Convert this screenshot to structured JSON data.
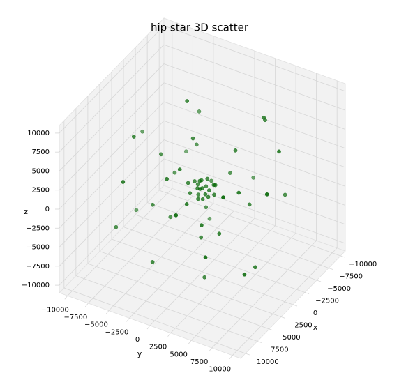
{
  "chart_data": {
    "type": "scatter3d",
    "title": "hip star 3D scatter",
    "xlabel": "x",
    "ylabel": "y",
    "zlabel": "z",
    "color": "#006400",
    "xlim": [
      -11000,
      11000
    ],
    "ylim": [
      -11000,
      11000
    ],
    "zlim": [
      -11000,
      11000
    ],
    "xticks": [
      {
        "value": -10000,
        "label": "−10000"
      },
      {
        "value": -7500,
        "label": "−7500"
      },
      {
        "value": -5000,
        "label": "−5000"
      },
      {
        "value": -2500,
        "label": "−2500"
      },
      0,
      2500,
      5000,
      7500,
      10000
    ],
    "yticks": [
      {
        "value": -10000,
        "label": "−10000"
      },
      {
        "value": -7500,
        "label": "−7500"
      },
      {
        "value": -5000,
        "label": "−5000"
      },
      {
        "value": -2500,
        "label": "−2500"
      },
      0,
      2500,
      5000,
      7500,
      10000
    ],
    "zticks": [
      {
        "value": -10000,
        "label": "−10000"
      },
      {
        "value": -7500,
        "label": "−7500"
      },
      {
        "value": -5000,
        "label": "−5000"
      },
      {
        "value": -2500,
        "label": "−2500"
      },
      0,
      2500,
      5000,
      7500,
      10000
    ],
    "x": [
      0,
      500,
      -400,
      800,
      -700,
      300,
      -900,
      1200,
      -300,
      600,
      -1000,
      200,
      1400,
      -500,
      900,
      -1300,
      100,
      -200,
      1100,
      -800,
      4000,
      -3000,
      2500,
      -4000,
      3500,
      -2000,
      5000,
      -5000,
      1000,
      -1500,
      2000,
      -3500,
      3000,
      -2500,
      4500,
      0,
      -4500,
      1500,
      8000,
      -7000,
      5000,
      -8000,
      6000,
      -3000,
      9000,
      -9000,
      2000,
      -2000,
      3000,
      -6000,
      7000,
      -5000,
      8000,
      0,
      -7000,
      4000,
      -4000,
      6000,
      -8000,
      1000
    ],
    "y": [
      0,
      -300,
      600,
      200,
      -500,
      900,
      100,
      -800,
      -1100,
      400,
      800,
      -200,
      300,
      1300,
      -1200,
      -300,
      1500,
      -600,
      1000,
      -1000,
      -2000,
      4000,
      3500,
      -3000,
      -4000,
      -4500,
      1000,
      500,
      5000,
      -2000,
      1000,
      2000,
      -1000,
      -1000,
      2500,
      -5000,
      -1500,
      -3000,
      -5000,
      6000,
      8000,
      -5000,
      -7000,
      -9000,
      2000,
      1000,
      9000,
      -3000,
      2000,
      4000,
      -2000,
      -2000,
      5000,
      -8000,
      -6000,
      -6000,
      7000,
      6000,
      3000,
      7000
    ],
    "z": [
      0,
      200,
      -300,
      500,
      400,
      -600,
      700,
      -200,
      300,
      -900,
      100,
      1000,
      -400,
      600,
      800,
      -700,
      -200,
      -1200,
      300,
      -400,
      3000,
      -2500,
      -3000,
      2000,
      -1500,
      -1000,
      1500,
      -1000,
      2000,
      4800,
      -4800,
      3500,
      4000,
      -4500,
      -1000,
      2500,
      -2500,
      -4000,
      4000,
      -3000,
      -5000,
      3000,
      -4000,
      2000,
      3000,
      -4000,
      4000,
      9000,
      -9000,
      7000,
      -6000,
      -8000,
      -2000,
      -6000,
      -2000,
      7000,
      5000,
      5000,
      5000,
      -7000
    ]
  }
}
